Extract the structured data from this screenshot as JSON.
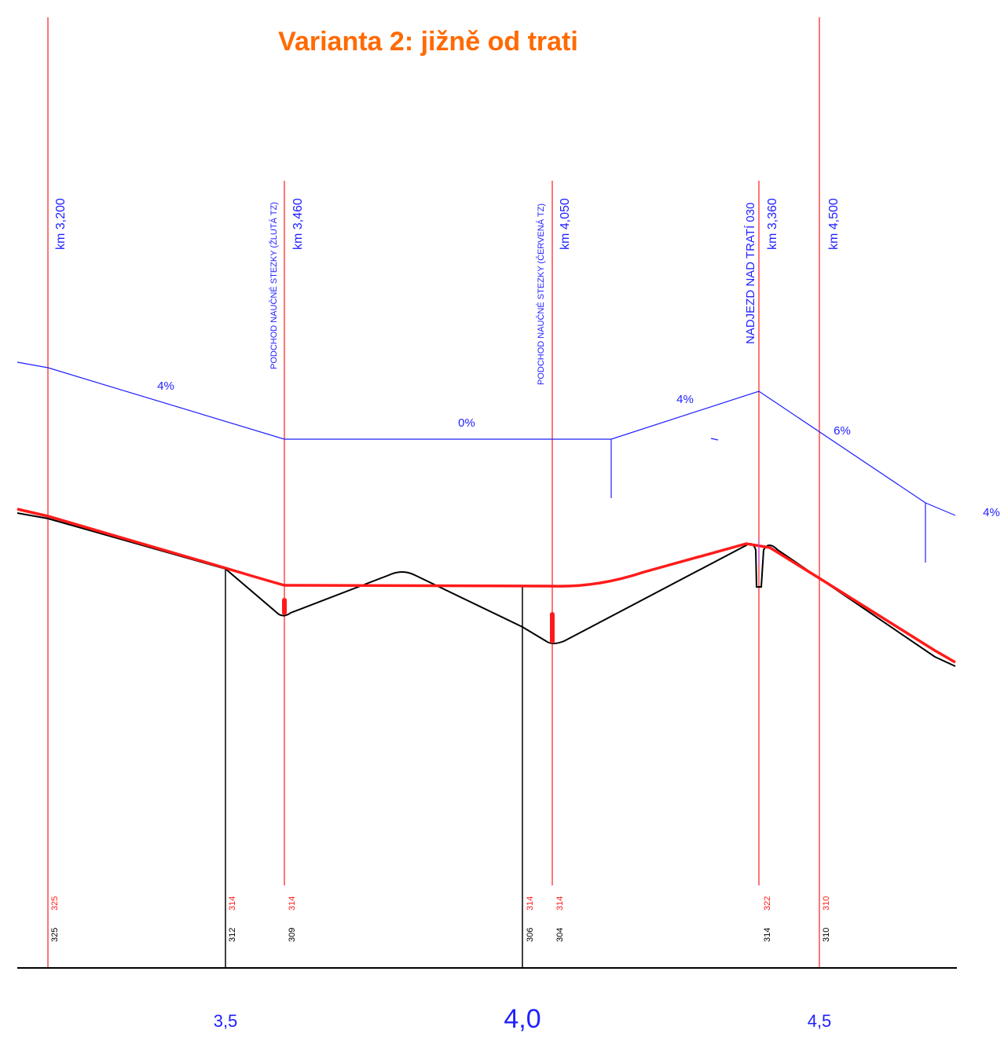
{
  "title": "Varianta 2: jižně od trati",
  "colors": {
    "title": "#ff6a00",
    "blue": "#1f1fff",
    "red": "#ff1a1a",
    "black": "#000000",
    "magenta": "#cc33cc"
  },
  "markers": [
    {
      "km": "km 3,200",
      "note": "",
      "elev_red": "325",
      "elev_black": "325"
    },
    {
      "km": "km 3,460",
      "note": "PODCHOD NAUČNÉ STEZKY (ŽLUTÁ TZ)",
      "elev_red": "314",
      "elev_black": "309"
    },
    {
      "km": "km 4,050",
      "note": "PODCHOD NAUČNÉ STEZKY (ČERVENÁ TZ)",
      "elev_red": "314",
      "elev_black": "304"
    },
    {
      "km": "km 3,360",
      "note": "NADJEZD NAD TRATÍ 030",
      "elev_red": "322",
      "elev_black": "314"
    },
    {
      "km": "km 4,500",
      "note": "",
      "elev_red": "310",
      "elev_black": "310"
    }
  ],
  "black_markers": [
    {
      "elev_red": "314",
      "elev_black": "312"
    },
    {
      "elev_red": "314",
      "elev_black": "306"
    }
  ],
  "grades": [
    "4%",
    "0%",
    "4%",
    "6%",
    "4%"
  ],
  "axis_labels": [
    "3,5",
    "4,0",
    "4,5"
  ]
}
